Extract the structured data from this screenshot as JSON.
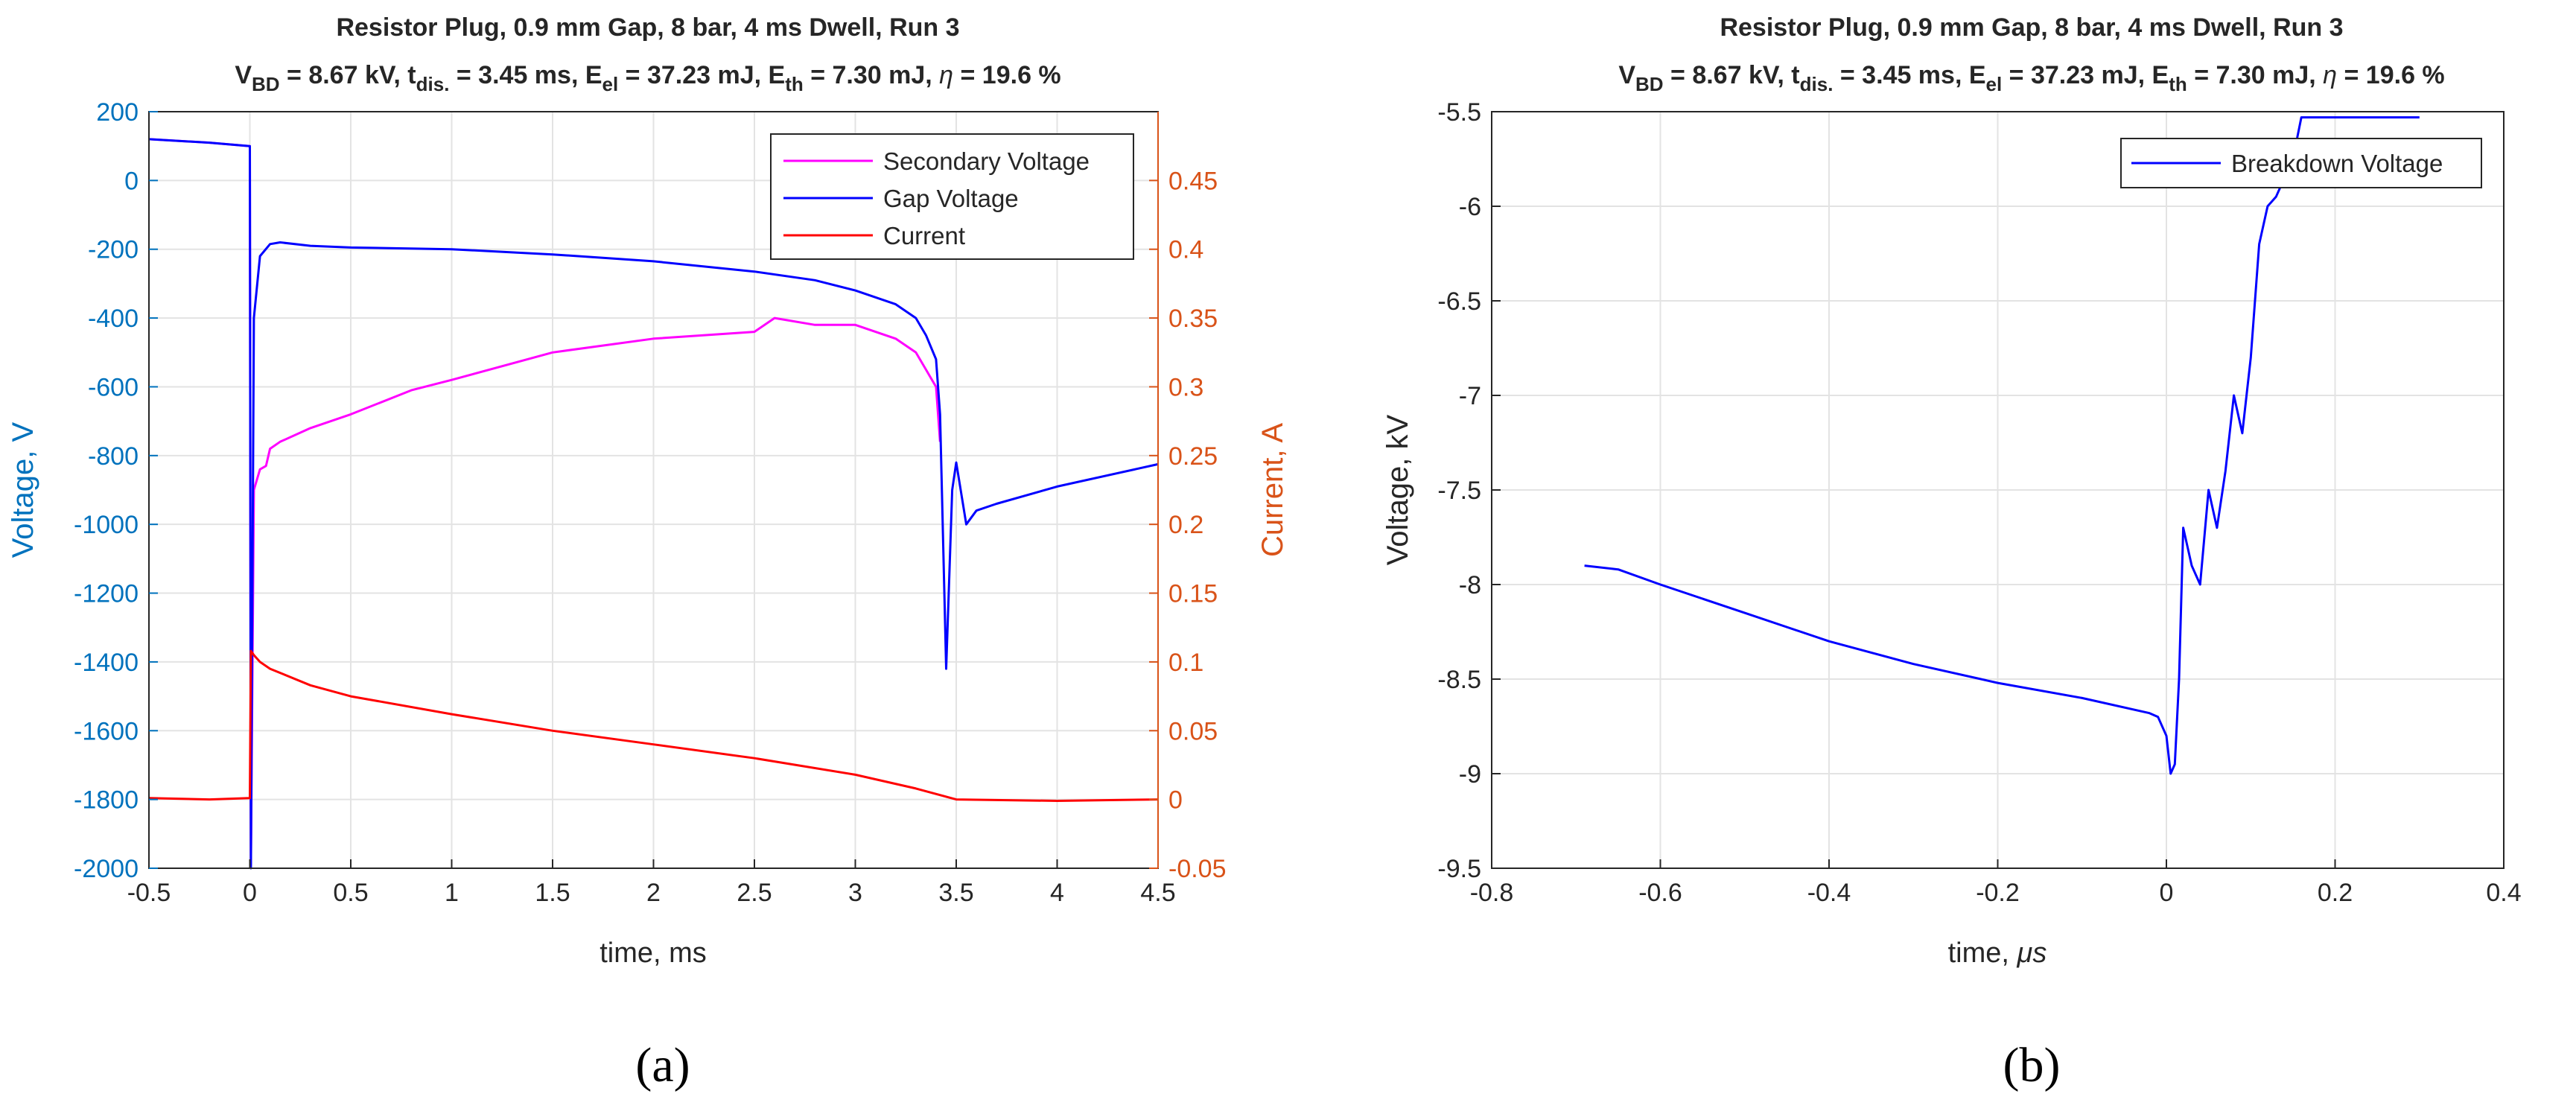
{
  "chart_data": [
    {
      "type": "line",
      "panel_label": "(a)",
      "title": "Resistor Plug, 0.9 mm Gap, 8 bar, 4 ms Dwell, Run 3",
      "subtitle": {
        "vbd_label": "V",
        "vbd_sub": "BD",
        "vbd_value": " = 8.67 kV, t",
        "tdis_sub": "dis.",
        "tdis_value": " = 3.45 ms, E",
        "eel_sub": "el",
        "eel_value": " = 37.23 mJ, E",
        "eth_sub": "th",
        "eth_value": " = 7.30 mJ, ",
        "eta_symbol": "η",
        "eta_value": " = 19.6 %"
      },
      "xlabel": "time, ms",
      "ylabel": "Voltage, V",
      "y2label": "Current, A",
      "xlim": [
        -0.5,
        4.5
      ],
      "ylim": [
        -2000,
        200
      ],
      "y2lim": [
        -0.05,
        0.5
      ],
      "xticks": [
        "-0.5",
        "0",
        "0.5",
        "1",
        "1.5",
        "2",
        "2.5",
        "3",
        "3.5",
        "4",
        "4.5"
      ],
      "yticks": [
        "200",
        "0",
        "-200",
        "-400",
        "-600",
        "-800",
        "-1000",
        "-1200",
        "-1400",
        "-1600",
        "-1800",
        "-2000"
      ],
      "y2ticks": [
        "0.45",
        "0.4",
        "0.35",
        "0.3",
        "0.25",
        "0.2",
        "0.15",
        "0.1",
        "0.05",
        "0",
        "-0.05"
      ],
      "grid": true,
      "legend_position": "top-right",
      "series": [
        {
          "name": "Secondary Voltage",
          "color": "#ff00ff",
          "axis": "left",
          "x": [
            -0.5,
            -0.2,
            0,
            0.005,
            0.02,
            0.05,
            0.08,
            0.1,
            0.15,
            0.3,
            0.5,
            0.8,
            1.0,
            1.5,
            2.0,
            2.5,
            2.6,
            2.8,
            3.0,
            3.2,
            3.3,
            3.35,
            3.4,
            3.42
          ],
          "y": [
            120,
            110,
            100,
            -1990,
            -900,
            -840,
            -830,
            -780,
            -760,
            -720,
            -680,
            -610,
            -580,
            -500,
            -460,
            -440,
            -400,
            -420,
            -420,
            -460,
            -500,
            -550,
            -600,
            -760
          ]
        },
        {
          "name": "Gap Voltage",
          "color": "#0000ff",
          "axis": "left",
          "x": [
            -0.5,
            -0.2,
            0,
            0.005,
            0.02,
            0.05,
            0.1,
            0.15,
            0.3,
            0.5,
            1.0,
            1.5,
            2.0,
            2.5,
            2.8,
            3.0,
            3.2,
            3.3,
            3.35,
            3.4,
            3.42,
            3.45,
            3.48,
            3.5,
            3.55,
            3.6,
            3.7,
            4.0,
            4.5
          ],
          "y": [
            120,
            110,
            100,
            -2000,
            -400,
            -220,
            -185,
            -180,
            -190,
            -195,
            -200,
            -215,
            -235,
            -265,
            -290,
            -320,
            -360,
            -400,
            -450,
            -520,
            -680,
            -1420,
            -900,
            -820,
            -1000,
            -960,
            -940,
            -890,
            -825
          ]
        },
        {
          "name": "Current",
          "color": "#ff0000",
          "axis": "right",
          "x": [
            -0.5,
            -0.2,
            0,
            0.005,
            0.02,
            0.05,
            0.1,
            0.3,
            0.5,
            1.0,
            1.5,
            2.0,
            2.5,
            3.0,
            3.3,
            3.5,
            4.0,
            4.5
          ],
          "y": [
            0.001,
            0.0,
            0.001,
            0.108,
            0.105,
            0.1,
            0.095,
            0.083,
            0.075,
            0.062,
            0.05,
            0.04,
            0.03,
            0.018,
            0.008,
            0.0,
            -0.001,
            0.0
          ]
        }
      ]
    },
    {
      "type": "line",
      "panel_label": "(b)",
      "title": "Resistor Plug, 0.9 mm Gap, 8 bar, 4 ms Dwell, Run 3",
      "subtitle": {
        "vbd_label": "V",
        "vbd_sub": "BD",
        "vbd_value": " = 8.67 kV, t",
        "tdis_sub": "dis.",
        "tdis_value": " = 3.45 ms, E",
        "eel_sub": "el",
        "eel_value": " = 37.23 mJ, E",
        "eth_sub": "th",
        "eth_value": " = 7.30 mJ, ",
        "eta_symbol": "η",
        "eta_value": " = 19.6 %"
      },
      "xlabel_text": "time, ",
      "xlabel_unit": "μs",
      "ylabel": "Voltage, kV",
      "xlim": [
        -0.8,
        0.4
      ],
      "ylim": [
        -9.5,
        -5.5
      ],
      "xticks": [
        "-0.8",
        "-0.6",
        "-0.4",
        "-0.2",
        "0",
        "0.2",
        "0.4"
      ],
      "yticks": [
        "-5.5",
        "-6",
        "-6.5",
        "-7",
        "-7.5",
        "-8",
        "-8.5",
        "-9",
        "-9.5"
      ],
      "grid": true,
      "legend_position": "top-right",
      "series": [
        {
          "name": "Breakdown Voltage",
          "color": "#0000ff",
          "x": [
            -0.69,
            -0.65,
            -0.6,
            -0.5,
            -0.4,
            -0.3,
            -0.2,
            -0.1,
            -0.02,
            -0.01,
            0.0,
            0.005,
            0.01,
            0.015,
            0.02,
            0.03,
            0.04,
            0.05,
            0.06,
            0.07,
            0.08,
            0.09,
            0.1,
            0.11,
            0.12,
            0.13,
            0.14,
            0.15,
            0.16,
            0.2,
            0.25,
            0.3
          ],
          "y": [
            -7.9,
            -7.92,
            -8.0,
            -8.15,
            -8.3,
            -8.42,
            -8.52,
            -8.6,
            -8.68,
            -8.7,
            -8.8,
            -9.0,
            -8.95,
            -8.5,
            -7.7,
            -7.9,
            -8.0,
            -7.5,
            -7.7,
            -7.4,
            -7.0,
            -7.2,
            -6.8,
            -6.2,
            -6.0,
            -5.95,
            -5.85,
            -5.75,
            -5.53,
            -5.53,
            -5.53,
            -5.53
          ]
        }
      ]
    }
  ]
}
